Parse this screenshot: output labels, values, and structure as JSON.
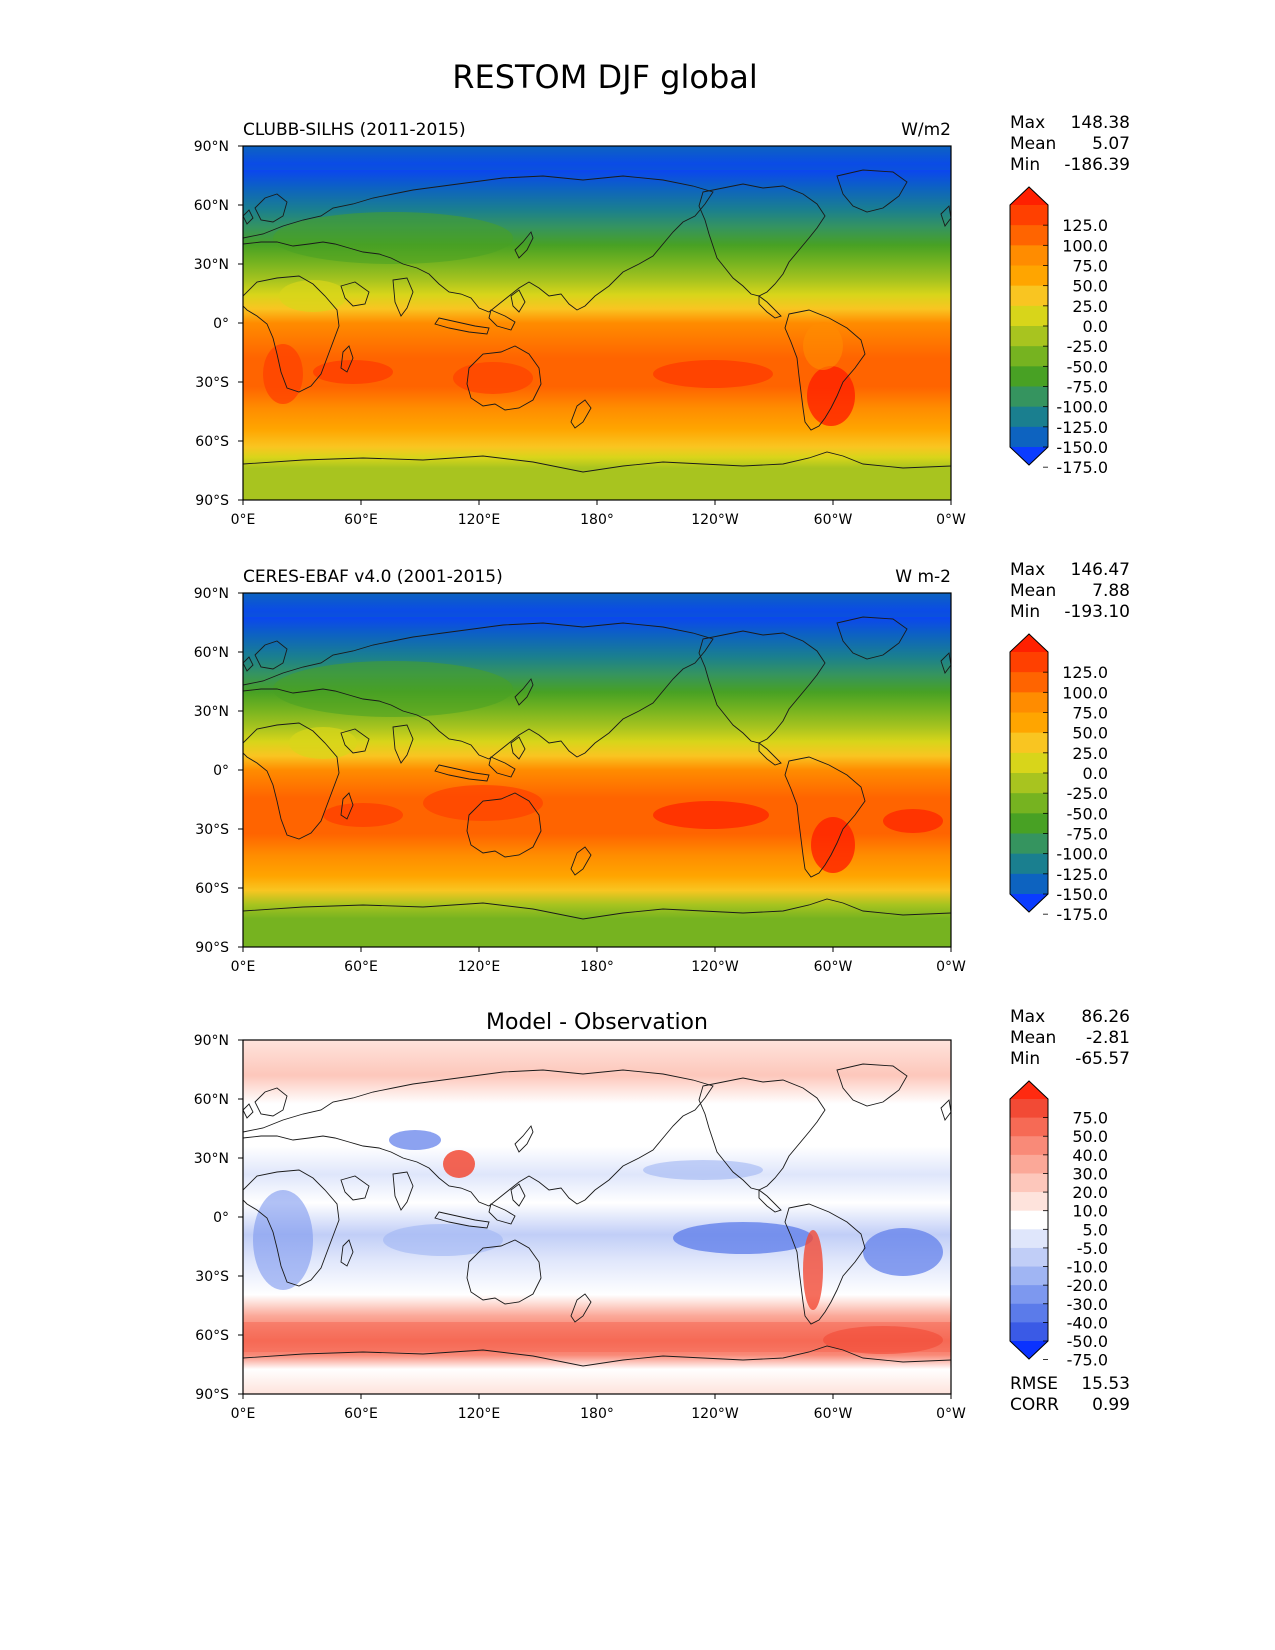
{
  "figure": {
    "title": "RESTOM DJF global"
  },
  "lat_ticks": [
    "90°N",
    "60°N",
    "30°N",
    "0°",
    "30°S",
    "60°S",
    "90°S"
  ],
  "lon_ticks": [
    "0°E",
    "60°E",
    "120°E",
    "180°",
    "120°W",
    "60°W",
    "0°W"
  ],
  "panels": [
    {
      "id": "model",
      "left_title": "CLUBB-SILHS (2011-2015)",
      "center_title": "",
      "right_title": "W/m2",
      "stats": [
        {
          "label": "Max",
          "value": "148.38"
        },
        {
          "label": "Mean",
          "value": "5.07"
        },
        {
          "label": "Min",
          "value": "-186.39"
        }
      ],
      "colorbar_labels": [
        "125.0",
        "100.0",
        "75.0",
        "50.0",
        "25.0",
        "0.0",
        "-25.0",
        "-50.0",
        "-75.0",
        "-100.0",
        "-125.0",
        "-150.0",
        "-175.0"
      ],
      "colorbar_colors": [
        "#ff2000",
        "#ff4000",
        "#ff6400",
        "#ff8c00",
        "#ffa500",
        "#f9c521",
        "#d8d51a",
        "#a8c41f",
        "#76b320",
        "#48a124",
        "#35945f",
        "#1a7f8f",
        "#0d63c0",
        "#0a3cff"
      ]
    },
    {
      "id": "obs",
      "left_title": "CERES-EBAF v4.0 (2001-2015)",
      "center_title": "",
      "right_title": "W m-2",
      "stats": [
        {
          "label": "Max",
          "value": "146.47"
        },
        {
          "label": "Mean",
          "value": "7.88"
        },
        {
          "label": "Min",
          "value": "-193.10"
        }
      ],
      "colorbar_labels": [
        "125.0",
        "100.0",
        "75.0",
        "50.0",
        "25.0",
        "0.0",
        "-25.0",
        "-50.0",
        "-75.0",
        "-100.0",
        "-125.0",
        "-150.0",
        "-175.0"
      ],
      "colorbar_colors": [
        "#ff2000",
        "#ff4000",
        "#ff6400",
        "#ff8c00",
        "#ffa500",
        "#f9c521",
        "#d8d51a",
        "#a8c41f",
        "#76b320",
        "#48a124",
        "#35945f",
        "#1a7f8f",
        "#0d63c0",
        "#0a3cff"
      ]
    },
    {
      "id": "diff",
      "left_title": "",
      "center_title": "Model - Observation",
      "right_title": "",
      "stats": [
        {
          "label": "Max",
          "value": "86.26"
        },
        {
          "label": "Mean",
          "value": "-2.81"
        },
        {
          "label": "Min",
          "value": "-65.57"
        }
      ],
      "colorbar_labels": [
        "75.0",
        "50.0",
        "40.0",
        "30.0",
        "20.0",
        "10.0",
        "5.0",
        "-5.0",
        "-10.0",
        "-20.0",
        "-30.0",
        "-40.0",
        "-50.0",
        "-75.0"
      ],
      "colorbar_colors": [
        "#ff2a10",
        "#f24a35",
        "#f66a55",
        "#f98a78",
        "#fba898",
        "#fdc7bb",
        "#fee3dc",
        "#ffffff",
        "#dfe6fb",
        "#c1cef7",
        "#a0b5f3",
        "#7d98ef",
        "#5b7bea",
        "#3a5ae6",
        "#0a32ff"
      ],
      "footer_stats": [
        {
          "label": "RMSE",
          "value": "15.53"
        },
        {
          "label": "CORR",
          "value": "0.99"
        }
      ]
    }
  ]
}
